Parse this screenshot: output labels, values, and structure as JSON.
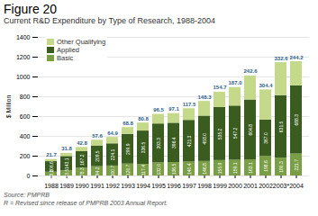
{
  "chart_data": {
    "type": "bar",
    "title": "Figure 20",
    "subtitle": "Current R&D Expenditure by Type of Research, 1988-2004",
    "source": "Source: PMPRB\nR = Revised since release of PMPRB 2003 Annual Report.",
    "ylabel": "$ Million",
    "categories": [
      "1988",
      "1989",
      "1990",
      "1991",
      "1992",
      "1993",
      "1994",
      "1995",
      "1996",
      "1997",
      "1998",
      "1999",
      "2000",
      "2001",
      "2002",
      "2003*",
      "2004"
    ],
    "series": [
      {
        "name": "Basic",
        "color": "#7a9e45",
        "values": [
          38.3,
          53.5,
          78.3,
          94.2,
          100.7,
          120.7,
          117.4,
          132.0,
          136.5,
          140.4,
          146.8,
          155.9,
          159.1,
          163.1,
          198.6,
          180.3,
          221.7
        ],
        "value_labels": [
          "38.3",
          "53.5",
          "78.3",
          "94.2",
          "100.7",
          "120.7",
          "117.4",
          "132.0",
          "136.5",
          "140.4",
          "146.8",
          "155.9",
          "159.1",
          "163.1",
          "198.6",
          "180.3",
          "221.7"
        ]
      },
      {
        "name": "Applied",
        "color": "#3a5c1e",
        "values": [
          106.6,
          143.1,
          167.2,
          209.5,
          224.1,
          299.9,
          336.5,
          393.3,
          396.4,
          421.3,
          458.0,
          535.2,
          547.2,
          604.8,
          367.0,
          631.5,
          688.3
        ],
        "value_labels": [
          "106.6",
          "143.1",
          "167.2",
          "209.5",
          "224.1",
          "299.9",
          "336.5",
          "393.3",
          "396.4",
          "421.3",
          "458.0",
          "535.2",
          "547.2",
          "604.8",
          "367.0",
          "631.5",
          "688.3"
        ]
      },
      {
        "name": "Other Qualifying",
        "color": "#c5d98a",
        "values": [
          21.7,
          31.8,
          42.8,
          57.6,
          64.9,
          68.8,
          80.8,
          96.5,
          97.1,
          117.5,
          148.3,
          154.7,
          187.0,
          242.6,
          304.4,
          332.6,
          244.2
        ],
        "value_labels": [
          "21.7",
          "31.8",
          "42.8",
          "57.6",
          "64.9",
          "68.8",
          "80.8",
          "96.5",
          "97.1",
          "117.5",
          "148.3",
          "154.7",
          "187.0",
          "242.6",
          "304.4",
          "332.6",
          "244.2"
        ]
      }
    ],
    "ylim": [
      0,
      1400
    ],
    "yticks": [
      0,
      200,
      400,
      600,
      800,
      1000,
      1200,
      1400
    ],
    "stacked": true,
    "grid": true,
    "legend": "upper left",
    "data_labels": true
  }
}
